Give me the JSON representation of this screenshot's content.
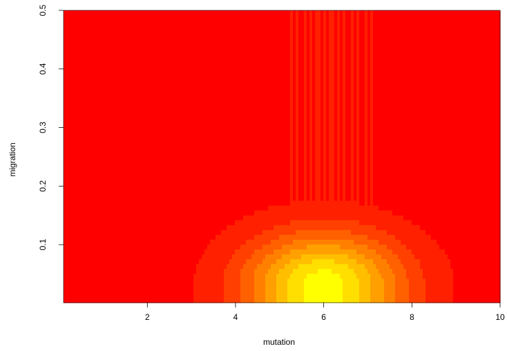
{
  "chart_data": {
    "type": "heatmap",
    "title": "",
    "xlabel": "mutation",
    "ylabel": "migration",
    "xlim": [
      0.1,
      10
    ],
    "ylim": [
      0.001,
      0.5
    ],
    "x_ticks": [
      "2",
      "4",
      "6",
      "8",
      "10"
    ],
    "y_ticks": [
      "0.1",
      "0.2",
      "0.3",
      "0.4",
      "0.5"
    ],
    "grid": false,
    "legend": "none",
    "colormap": "heat",
    "colors": {
      "low": "#FF0000",
      "mid": "#FF8000",
      "high": "#FFFF00"
    },
    "intensity_peak": {
      "mutation": 6.0,
      "migration": 0.035,
      "value": 1.0
    },
    "intensity_spread": {
      "mutation_sd": 1.25,
      "migration_sd": 0.06
    }
  }
}
